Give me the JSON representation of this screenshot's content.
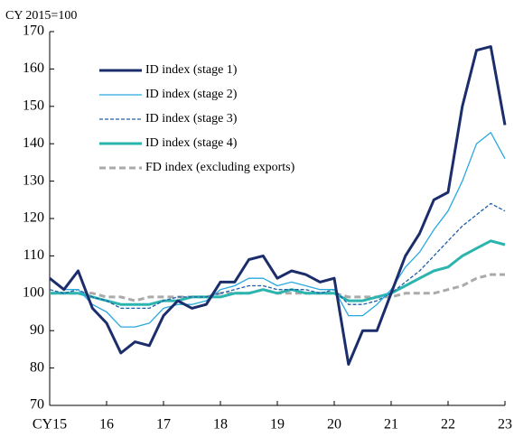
{
  "chart_data": {
    "type": "line",
    "y_label": "CY 2015=100",
    "x": [
      2015,
      2015.25,
      2015.5,
      2015.75,
      2016,
      2016.25,
      2016.5,
      2016.75,
      2017,
      2017.25,
      2017.5,
      2017.75,
      2018,
      2018.25,
      2018.5,
      2018.75,
      2019,
      2019.25,
      2019.5,
      2019.75,
      2020,
      2020.25,
      2020.5,
      2020.75,
      2021,
      2021.25,
      2021.5,
      2021.75,
      2022,
      2022.25,
      2022.5,
      2022.75,
      2023
    ],
    "series": [
      {
        "name": "ID index (stage 1)",
        "color": "#1b2d6b",
        "width": 3,
        "dash": "none",
        "values": [
          104,
          101,
          106,
          96,
          92,
          84,
          87,
          86,
          94,
          98,
          96,
          97,
          103,
          103,
          109,
          110,
          104,
          106,
          105,
          103,
          104,
          81,
          90,
          90,
          100,
          110,
          116,
          125,
          127,
          150,
          165,
          166,
          145
        ]
      },
      {
        "name": "ID index (stage 2)",
        "color": "#2aa8e0",
        "width": 1.3,
        "dash": "none",
        "values": [
          104,
          101,
          101,
          97,
          95,
          91,
          91,
          92,
          96,
          97,
          97,
          98,
          101,
          102,
          104,
          104,
          102,
          103,
          102,
          101,
          101,
          94,
          94,
          97,
          101,
          107,
          111,
          117,
          122,
          130,
          140,
          143,
          136
        ]
      },
      {
        "name": "ID index (stage 3)",
        "color": "#1f5fa8",
        "width": 1.3,
        "dash": "4 2",
        "values": [
          101,
          100,
          101,
          99,
          98,
          96,
          96,
          96,
          98,
          99,
          99,
          99,
          100,
          101,
          102,
          102,
          101,
          101,
          101,
          100,
          101,
          97,
          97,
          98,
          100,
          103,
          106,
          110,
          114,
          118,
          121,
          124,
          122
        ]
      },
      {
        "name": "ID index (stage 4)",
        "color": "#2bb5ae",
        "width": 3,
        "dash": "none",
        "values": [
          100,
          100,
          100,
          99,
          98,
          97,
          97,
          97,
          98,
          98,
          99,
          99,
          99,
          100,
          100,
          101,
          100,
          101,
          100,
          100,
          100,
          98,
          98,
          99,
          100,
          102,
          104,
          106,
          107,
          110,
          112,
          114,
          113
        ]
      },
      {
        "name": "FD index (excluding exports)",
        "color": "#aaaaaa",
        "width": 3,
        "dash": "7 4",
        "values": [
          100,
          100,
          100,
          100,
          99,
          99,
          98,
          99,
          99,
          99,
          99,
          99,
          100,
          100,
          100,
          101,
          100,
          100,
          100,
          100,
          100,
          99,
          99,
          99,
          99,
          100,
          100,
          100,
          101,
          102,
          104,
          105,
          105
        ]
      }
    ],
    "xlim": [
      2015,
      2023
    ],
    "xticks": [
      {
        "value": 2015,
        "label": "CY15"
      },
      {
        "value": 2016,
        "label": "16"
      },
      {
        "value": 2017,
        "label": "17"
      },
      {
        "value": 2018,
        "label": "18"
      },
      {
        "value": 2019,
        "label": "19"
      },
      {
        "value": 2020,
        "label": "20"
      },
      {
        "value": 2021,
        "label": "21"
      },
      {
        "value": 2022,
        "label": "22"
      },
      {
        "value": 2023,
        "label": "23"
      }
    ],
    "ylim": [
      70,
      170
    ],
    "yticks": [
      70,
      80,
      90,
      100,
      110,
      120,
      130,
      140,
      150,
      160,
      170
    ],
    "grid": false,
    "legend": "upper left"
  }
}
